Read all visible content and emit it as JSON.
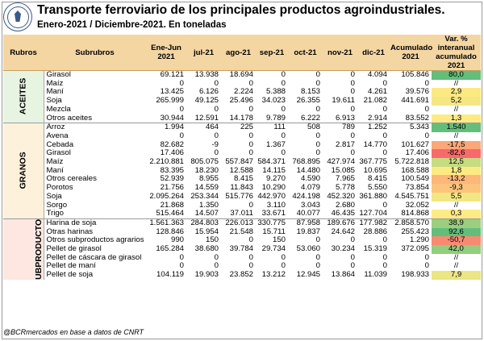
{
  "header": {
    "title": "Transporte ferroviario de los principales productos agroindustriales.",
    "subtitle": "Enero-2021 / Diciembre-2021. En toneladas"
  },
  "table": {
    "columns": [
      [
        "Rubros"
      ],
      [
        "Subrubros"
      ],
      [
        "Ene-Jun",
        "2021"
      ],
      [
        "jul-21"
      ],
      [
        "ago-21"
      ],
      [
        "sep-21"
      ],
      [
        "oct-21"
      ],
      [
        "nov-21"
      ],
      [
        "dic-21"
      ],
      [
        "Acumulado",
        "2021"
      ],
      [
        "Var. % interanual",
        "acumulado 2021"
      ]
    ],
    "groups": [
      {
        "name": "ACEITES",
        "rows": [
          {
            "sub": "Girasol",
            "v": [
              "69.121",
              "13.938",
              "18.694",
              "0",
              "0",
              "0",
              "4.094",
              "105.846"
            ],
            "var": "80,0",
            "color": "#63be7b"
          },
          {
            "sub": "Maíz",
            "v": [
              "0",
              "0",
              "0",
              "0",
              "0",
              "0",
              "0",
              "0"
            ],
            "var": "//",
            "color": ""
          },
          {
            "sub": "Maní",
            "v": [
              "13.425",
              "6.126",
              "2.224",
              "5.388",
              "8.153",
              "0",
              "4.261",
              "39.576"
            ],
            "var": "2,9",
            "color": "#fde982"
          },
          {
            "sub": "Soja",
            "v": [
              "265.999",
              "49.125",
              "25.496",
              "34.023",
              "26.355",
              "19.611",
              "21.082",
              "441.691"
            ],
            "var": "5,2",
            "color": "#f4e783"
          },
          {
            "sub": "Mezcla",
            "v": [
              "0",
              "0",
              "0",
              "0",
              "0",
              "0",
              "0",
              "0"
            ],
            "var": "//",
            "color": ""
          },
          {
            "sub": "Otros aceites",
            "v": [
              "30.944",
              "12.591",
              "14.178",
              "9.789",
              "6.222",
              "6.913",
              "2.914",
              "83.552"
            ],
            "var": "1,3",
            "color": "#feea83"
          }
        ]
      },
      {
        "name": "GRANOS",
        "rows": [
          {
            "sub": "Arroz",
            "v": [
              "1.994",
              "464",
              "225",
              "111",
              "508",
              "789",
              "1.252",
              "5.343"
            ],
            "var": "1.540",
            "color": "#63be7b"
          },
          {
            "sub": "Avena",
            "v": [
              "0",
              "0",
              "0",
              "0",
              "0",
              "0",
              "0",
              "0"
            ],
            "var": "//",
            "color": ""
          },
          {
            "sub": "Cebada",
            "v": [
              "82.682",
              "-9",
              "0",
              "1.367",
              "0",
              "2.817",
              "14.770",
              "101.627"
            ],
            "var": "-17,5",
            "color": "#fba777"
          },
          {
            "sub": "Girasol",
            "v": [
              "17.406",
              "0",
              "0",
              "0",
              "0",
              "0",
              "0",
              "17.406"
            ],
            "var": "-82,6",
            "color": "#f8696b"
          },
          {
            "sub": "Maíz",
            "v": [
              "2.210.881",
              "805.075",
              "557.847",
              "584.371",
              "768.895",
              "427.974",
              "367.775",
              "5.722.818"
            ],
            "var": "12,5",
            "color": "#c5dc81"
          },
          {
            "sub": "Maní",
            "v": [
              "83.395",
              "18.230",
              "12.588",
              "14.115",
              "14.480",
              "15.085",
              "10.695",
              "168.588"
            ],
            "var": "1,8",
            "color": "#feea83"
          },
          {
            "sub": "Otros cereales",
            "v": [
              "52.939",
              "8.955",
              "8.415",
              "9.270",
              "4.590",
              "7.965",
              "8.415",
              "100.549"
            ],
            "var": "-13,2",
            "color": "#fcb77a"
          },
          {
            "sub": "Porotos",
            "v": [
              "21.756",
              "14.559",
              "11.843",
              "10.290",
              "4.079",
              "5.778",
              "5.550",
              "73.854"
            ],
            "var": "-9,3",
            "color": "#fdc47d"
          },
          {
            "sub": "Soja",
            "v": [
              "2.095.264",
              "253.344",
              "515.776",
              "442.970",
              "424.198",
              "452.320",
              "361.880",
              "4.545.751"
            ],
            "var": "5,5",
            "color": "#f2e783"
          },
          {
            "sub": "Sorgo",
            "v": [
              "21.868",
              "1.350",
              "0",
              "3.110",
              "3.043",
              "2.680",
              "0",
              "32.052"
            ],
            "var": "//",
            "color": ""
          },
          {
            "sub": "Trigo",
            "v": [
              "515.464",
              "14.507",
              "37.011",
              "33.671",
              "40.077",
              "46.435",
              "127.704",
              "814.868"
            ],
            "var": "0,3",
            "color": "#ffeb84"
          }
        ]
      },
      {
        "name": "SUBPRODUCTOS",
        "rows": [
          {
            "sub": "Harina de soja",
            "v": [
              "1.561.363",
              "284.803",
              "226.013",
              "330.775",
              "87.958",
              "189.676",
              "177.982",
              "2.858.570"
            ],
            "var": "38,9",
            "color": "#9bcf7f"
          },
          {
            "sub": "Otras harinas",
            "v": [
              "128.846",
              "15.954",
              "21.548",
              "15.711",
              "19.837",
              "24.642",
              "28.886",
              "255.423"
            ],
            "var": "92,6",
            "color": "#63be7b"
          },
          {
            "sub": "Otros subproductos agrarios",
            "v": [
              "990",
              "150",
              "0",
              "150",
              "0",
              "0",
              "0",
              "1.290"
            ],
            "var": "-50,7",
            "color": "#f98a72"
          },
          {
            "sub": "Pellet de girasol",
            "v": [
              "165.284",
              "38.680",
              "39.784",
              "29.734",
              "53.060",
              "30.234",
              "15.319",
              "372.095"
            ],
            "var": "42,0",
            "color": "#93cd7e"
          },
          {
            "sub": "Pellet de cáscara de girasol",
            "v": [
              "0",
              "0",
              "0",
              "0",
              "0",
              "0",
              "0",
              "0"
            ],
            "var": "//",
            "color": ""
          },
          {
            "sub": "Pellet de maní",
            "v": [
              "0",
              "0",
              "0",
              "0",
              "0",
              "0",
              "0",
              "0"
            ],
            "var": "//",
            "color": ""
          },
          {
            "sub": "Pellet de soja",
            "v": [
              "104.119",
              "19.903",
              "23.852",
              "13.212",
              "12.945",
              "13.864",
              "11.039",
              "198.933"
            ],
            "var": "7,9",
            "color": "#ebe583"
          }
        ]
      }
    ]
  },
  "footer": {
    "source": "@BCRmercados en base a datos de CNRT"
  }
}
